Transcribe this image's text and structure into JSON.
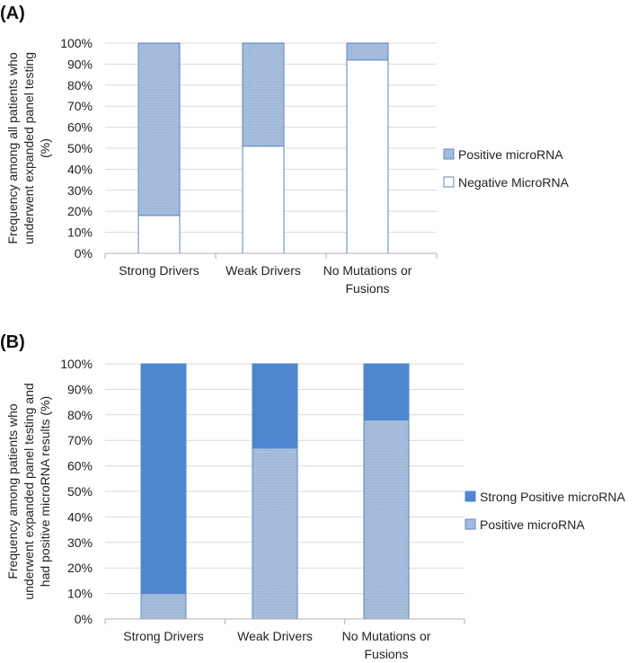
{
  "chart_data": [
    {
      "panel_label": "(A)",
      "type": "bar",
      "stacked": true,
      "percent": true,
      "title": "",
      "xlabel": "",
      "ylabel_lines": [
        "Frequency among all patients who",
        "underwent expanded panel testing",
        "(%)"
      ],
      "categories": [
        [
          "Strong Drivers"
        ],
        [
          "Weak Drivers"
        ],
        [
          "No Mutations or",
          "Fusions"
        ]
      ],
      "ylim": [
        0,
        100
      ],
      "yticks": [
        "0%",
        "10%",
        "20%",
        "30%",
        "40%",
        "50%",
        "60%",
        "70%",
        "80%",
        "90%",
        "100%"
      ],
      "legend_position": "right",
      "series": [
        {
          "name": "Negative MicroRNA",
          "values": [
            18,
            51,
            92
          ],
          "color": "#ffffff",
          "stroke": "#5b87bf",
          "pattern": "none"
        },
        {
          "name": "Positive microRNA",
          "values": [
            82,
            49,
            8
          ],
          "color": "#a9bfdd",
          "stroke": "#5b87bf",
          "pattern": "dots"
        }
      ],
      "legend_order": [
        "Positive microRNA",
        "Negative MicroRNA"
      ]
    },
    {
      "panel_label": "(B)",
      "type": "bar",
      "stacked": true,
      "percent": true,
      "title": "",
      "xlabel": "",
      "ylabel_lines": [
        "Frequency among patients who",
        "underwent expanded panel testing and",
        "had positive microRNA results (%)"
      ],
      "categories": [
        [
          "Strong Drivers"
        ],
        [
          "Weak Drivers"
        ],
        [
          "No Mutations or",
          "Fusions"
        ]
      ],
      "ylim": [
        0,
        100
      ],
      "yticks": [
        "0%",
        "10%",
        "20%",
        "30%",
        "40%",
        "50%",
        "60%",
        "70%",
        "80%",
        "90%",
        "100%"
      ],
      "legend_position": "right",
      "series": [
        {
          "name": "Positive microRNA",
          "values": [
            10,
            67,
            78
          ],
          "color": "#a9bfdd",
          "stroke": "#5b87bf",
          "pattern": "dots"
        },
        {
          "name": "Strong Positive microRNA",
          "values": [
            90,
            33,
            22
          ],
          "color": "#4f86d0",
          "stroke": "#4f86d0",
          "pattern": "none"
        }
      ],
      "legend_order": [
        "Strong Positive microRNA",
        "Positive microRNA"
      ]
    }
  ]
}
